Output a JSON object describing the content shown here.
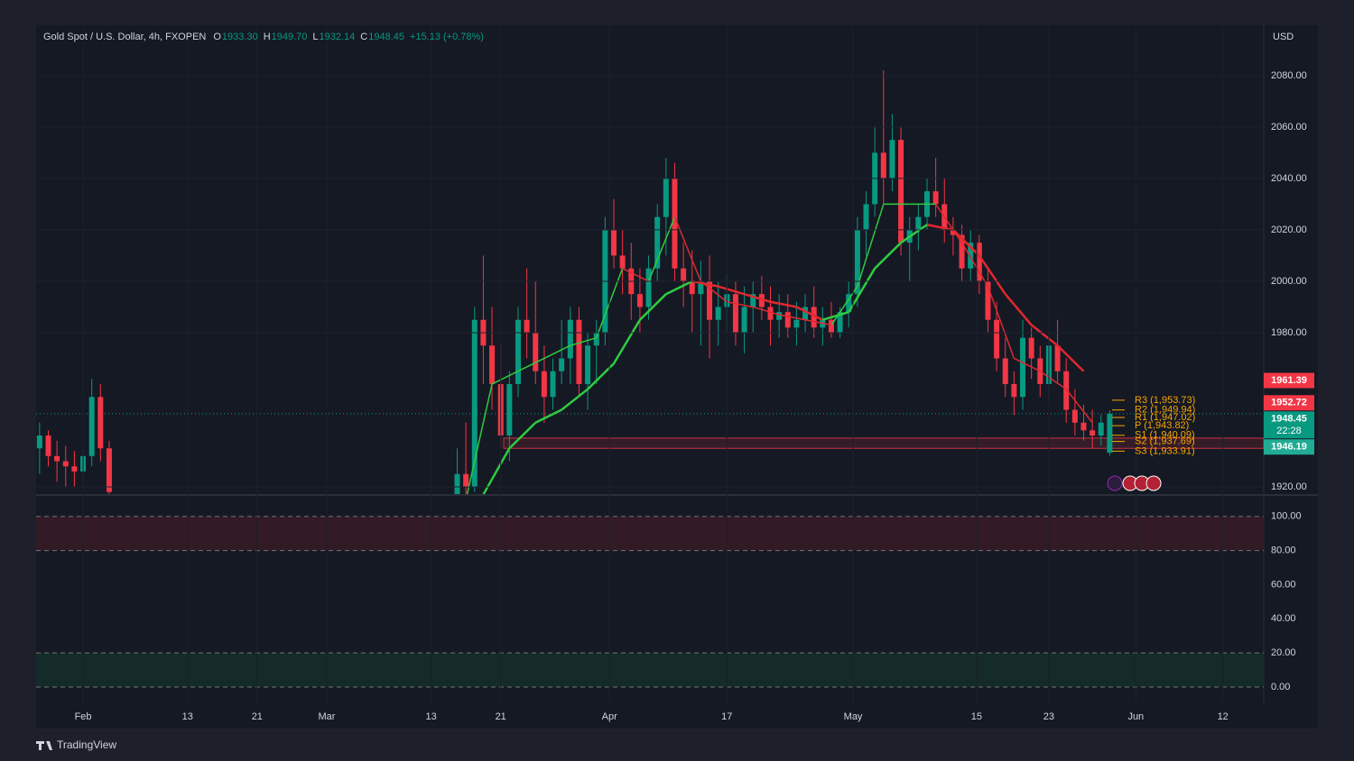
{
  "chart_data": {
    "type": "candlestick",
    "title": "Gold Spot / U.S. Dollar, 4h, FXOPEN",
    "ohlc": [
      {
        "label": "O",
        "value": "1933.30"
      },
      {
        "label": "H",
        "value": "1949.70"
      },
      {
        "label": "L",
        "value": "1932.14"
      },
      {
        "label": "C",
        "value": "1948.45"
      }
    ],
    "change": "+15.13 (+0.78%)",
    "currency": "USD",
    "brand": "TradingView",
    "up_color": "#089981",
    "down_color": "#f23645",
    "xlim": [
      26.6,
      167.7
    ],
    "xticks": [
      {
        "value": 32,
        "label": "Feb"
      },
      {
        "value": 44,
        "label": "13"
      },
      {
        "value": 52,
        "label": "21"
      },
      {
        "value": 60,
        "label": "Mar"
      },
      {
        "value": 72,
        "label": "13"
      },
      {
        "value": 80,
        "label": "21"
      },
      {
        "value": 92.5,
        "label": "Apr"
      },
      {
        "value": 106,
        "label": "17"
      },
      {
        "value": 120.5,
        "label": "May"
      },
      {
        "value": 134.7,
        "label": "15"
      },
      {
        "value": 143,
        "label": "23"
      },
      {
        "value": 153,
        "label": "Jun"
      },
      {
        "value": 163,
        "label": "12"
      }
    ],
    "ylim": [
      1917.2,
      2099.6
    ],
    "yticks": [
      {
        "value": 1920,
        "label": "1920.00"
      },
      {
        "value": 1980,
        "label": "1980.00"
      },
      {
        "value": 2000,
        "label": "2000.00"
      },
      {
        "value": 2020,
        "label": "2020.00"
      },
      {
        "value": 2040,
        "label": "2040.00"
      },
      {
        "value": 2060,
        "label": "2060.00"
      },
      {
        "value": 2080,
        "label": "2080.00"
      }
    ],
    "candles": {
      "x": [
        27,
        28,
        29,
        30,
        31,
        32,
        33,
        34,
        35,
        75,
        76,
        77,
        78,
        79,
        80,
        81,
        82,
        83,
        84,
        85,
        86,
        87,
        88,
        89,
        90,
        91,
        92,
        93,
        94,
        95,
        96,
        97,
        98,
        99,
        100,
        101,
        102,
        103,
        104,
        105,
        106,
        107,
        108,
        109,
        110,
        111,
        112,
        113,
        114,
        115,
        116,
        117,
        118,
        119,
        120,
        121,
        122,
        123,
        124,
        125,
        126,
        127,
        128,
        129,
        130,
        131,
        132,
        133,
        134,
        135,
        136,
        137,
        138,
        139,
        140,
        141,
        142,
        143,
        144,
        145,
        146,
        147,
        148,
        149,
        150
      ],
      "open": [
        1935,
        1940,
        1932,
        1930,
        1928,
        1926,
        1932,
        1955,
        1935,
        1910,
        1925,
        1920,
        1985,
        1975,
        1960,
        1940,
        1960,
        1985,
        1980,
        1965,
        1955,
        1965,
        1970,
        1985,
        1960,
        1975,
        1980,
        2020,
        2010,
        2005,
        1995,
        1990,
        2005,
        2025,
        2040,
        2005,
        2000,
        1995,
        2000,
        1985,
        1990,
        1995,
        1980,
        1990,
        1995,
        1990,
        1985,
        1988,
        1982,
        1985,
        1990,
        1982,
        1985,
        1980,
        1988,
        1995,
        2020,
        2030,
        2050,
        2040,
        2055,
        2015,
        2020,
        2025,
        2035,
        2030,
        2020,
        2018,
        2005,
        2015,
        2000,
        1985,
        1970,
        1960,
        1955,
        1978,
        1970,
        1960,
        1975,
        1965,
        1950,
        1945,
        1942,
        1940,
        1933.3
      ],
      "high": [
        1945,
        1942,
        1938,
        1936,
        1934,
        1935,
        1962,
        1960,
        1938,
        1935,
        1945,
        1990,
        2010,
        1990,
        1975,
        1965,
        1990,
        2005,
        2000,
        1975,
        1970,
        1985,
        1990,
        1990,
        1980,
        1985,
        2025,
        2032,
        2020,
        2015,
        2005,
        2010,
        2030,
        2048,
        2046,
        2015,
        2012,
        2008,
        2010,
        2000,
        2003,
        2000,
        1998,
        2000,
        2002,
        1998,
        1995,
        1995,
        1992,
        1995,
        1998,
        1990,
        1992,
        1990,
        2000,
        2025,
        2035,
        2060,
        2082,
        2065,
        2060,
        2025,
        2030,
        2040,
        2048,
        2040,
        2025,
        2022,
        2020,
        2018,
        2005,
        1992,
        1978,
        1965,
        1985,
        1982,
        1975,
        1980,
        1985,
        1970,
        1958,
        1952,
        1950,
        1948,
        1949.7
      ],
      "low": [
        1925,
        1928,
        1922,
        1920,
        1920,
        1922,
        1928,
        1930,
        1915,
        1905,
        1915,
        1918,
        1960,
        1950,
        1935,
        1930,
        1955,
        1970,
        1960,
        1945,
        1950,
        1960,
        1960,
        1955,
        1950,
        1960,
        1975,
        2005,
        1995,
        1985,
        1980,
        1985,
        2000,
        2010,
        2000,
        1990,
        1980,
        1975,
        1970,
        1975,
        1980,
        1975,
        1972,
        1980,
        1985,
        1975,
        1978,
        1978,
        1975,
        1980,
        1978,
        1975,
        1978,
        1978,
        1982,
        1990,
        2010,
        2025,
        2030,
        2035,
        2010,
        2000,
        2012,
        2020,
        2025,
        2015,
        2010,
        2000,
        2000,
        1995,
        1980,
        1965,
        1955,
        1948,
        1950,
        1962,
        1955,
        1955,
        1960,
        1945,
        1940,
        1938,
        1935,
        1936,
        1932.14
      ],
      "close": [
        1940,
        1932,
        1930,
        1928,
        1926,
        1932,
        1955,
        1935,
        1918,
        1925,
        1920,
        1985,
        1975,
        1960,
        1940,
        1960,
        1985,
        1980,
        1965,
        1955,
        1965,
        1970,
        1985,
        1960,
        1975,
        1980,
        2020,
        2010,
        2005,
        1995,
        1990,
        2005,
        2025,
        2040,
        2005,
        2000,
        1995,
        2000,
        1985,
        1990,
        1995,
        1980,
        1990,
        1995,
        1990,
        1985,
        1988,
        1982,
        1985,
        1990,
        1982,
        1985,
        1980,
        1988,
        1995,
        2020,
        2030,
        2050,
        2040,
        2055,
        2015,
        2020,
        2025,
        2035,
        2030,
        2020,
        2018,
        2005,
        2015,
        2000,
        1985,
        1970,
        1960,
        1955,
        1978,
        1970,
        1960,
        1975,
        1965,
        1950,
        1945,
        1942,
        1940,
        1945,
        1948.45
      ]
    },
    "series": [
      {
        "x": [
          76,
          79,
          82,
          85,
          88,
          91,
          94,
          97,
          100,
          103,
          106,
          109,
          112,
          115,
          118,
          121,
          124,
          127,
          130,
          133,
          136,
          139,
          142,
          145,
          148
        ],
        "values": [
          1915,
          1960,
          1965,
          1970,
          1975,
          1978,
          2005,
          2000,
          2025,
          2000,
          1992,
          1990,
          1987,
          1985,
          1983,
          1998,
          2030,
          2030,
          2030,
          2015,
          1998,
          1970,
          1965,
          1958,
          1945
        ]
      },
      {
        "x": [
          78,
          81,
          84,
          87,
          90,
          93,
          96,
          99,
          102,
          105,
          108,
          111,
          114,
          117,
          120,
          123,
          126,
          129,
          132,
          135,
          138,
          141,
          144,
          147
        ],
        "values": [
          1917,
          1935,
          1945,
          1950,
          1958,
          1968,
          1985,
          1995,
          2000,
          1998,
          1995,
          1992,
          1990,
          1985,
          1988,
          2005,
          2015,
          2022,
          2020,
          2010,
          1995,
          1983,
          1975,
          1965
        ]
      }
    ],
    "last_price": 1948.45,
    "countdown": "22:28",
    "price_labels": [
      {
        "value": 1961.39,
        "color": "#f23645"
      },
      {
        "value": 1952.72,
        "color": "#f23645"
      },
      {
        "value": 1948.45,
        "color": "#089981"
      },
      {
        "value": 1946.19,
        "color": "#22ab94"
      }
    ],
    "pivots": [
      {
        "label": "R3 (1,953.73)",
        "value": 1953.73
      },
      {
        "label": "R2 (1,949.94)",
        "value": 1949.94
      },
      {
        "label": "R1 (1,947.02)",
        "value": 1947.02
      },
      {
        "label": "P (1,943.82)",
        "value": 1943.82
      },
      {
        "label": "S1 (1,940.09)",
        "value": 1940.09
      },
      {
        "label": "S2 (1,937.69)",
        "value": 1937.69
      },
      {
        "label": "S3 (1,933.91)",
        "value": 1933.91
      }
    ],
    "pivot_color": "#f7a600",
    "zone": {
      "from": 1935,
      "to": 1939,
      "color": "#f23645"
    },
    "oscillator": {
      "ylim": [
        -9.5,
        112
      ],
      "yticks": [
        {
          "value": 0,
          "label": "0.00"
        },
        {
          "value": 20,
          "label": "20.00"
        },
        {
          "value": 40,
          "label": "40.00"
        },
        {
          "value": 60,
          "label": "60.00"
        },
        {
          "value": 80,
          "label": "80.00"
        },
        {
          "value": 100,
          "label": "100.00"
        }
      ],
      "overbought": [
        80,
        100
      ],
      "oversold": [
        0,
        20
      ]
    }
  }
}
